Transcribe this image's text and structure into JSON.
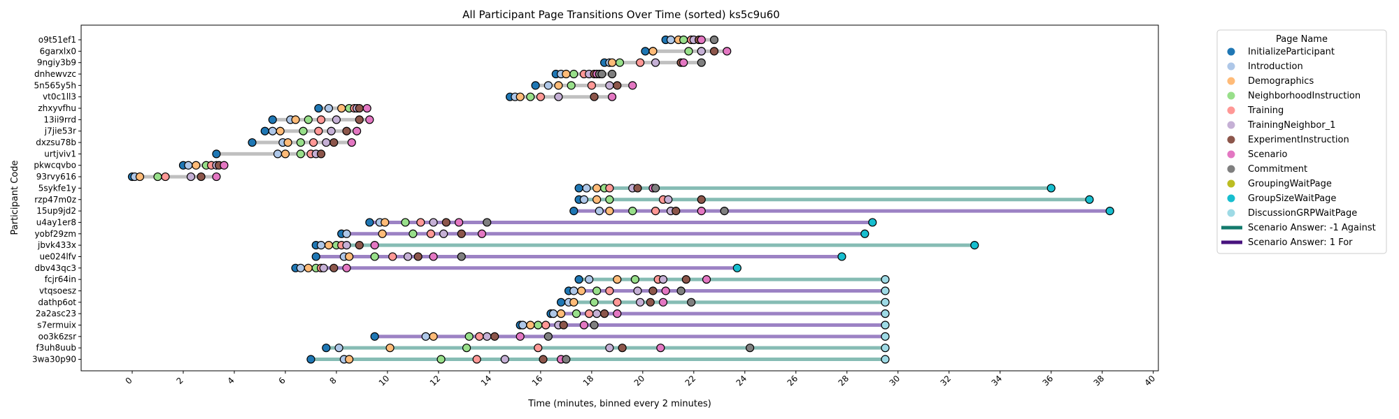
{
  "chart_data": {
    "type": "timeline",
    "title": "All Participant Page Transitions Over Time (sorted) ks5c9u60",
    "xlabel": "Time (minutes, binned every 2 minutes)",
    "ylabel": "Participant Code",
    "xlim": [
      -2,
      40.2
    ],
    "xticks": [
      0,
      2,
      4,
      6,
      8,
      10,
      12,
      14,
      16,
      18,
      20,
      22,
      24,
      26,
      28,
      30,
      32,
      34,
      36,
      38,
      40
    ],
    "grid": false,
    "legend": {
      "title": "Page Name",
      "placement": "outside-right-top",
      "page_names": [
        "InitializeParticipant",
        "Introduction",
        "Demographics",
        "NeighborhoodInstruction",
        "Training",
        "TrainingNeighbor_1",
        "ExperimentInstruction",
        "Scenario",
        "Commitment",
        "GroupingWaitPage",
        "GroupSizeWaitPage",
        "DiscussionGRPWaitPage"
      ],
      "answer_lines": [
        {
          "label": "Scenario Answer: -1 Against",
          "key": "against"
        },
        {
          "label": "Scenario Answer: 1 For",
          "key": "for"
        }
      ]
    },
    "page_colors": {
      "InitializeParticipant": "#1f77b4",
      "Introduction": "#aec7e8",
      "Demographics": "#ffbb78",
      "NeighborhoodInstruction": "#98df8a",
      "Training": "#ff9896",
      "TrainingNeighbor_1": "#c5b0d5",
      "ExperimentInstruction": "#8c564b",
      "Scenario": "#e377c2",
      "Commitment": "#7f7f7f",
      "GroupingWaitPage": "#bcbd22",
      "GroupSizeWaitPage": "#17becf",
      "DiscussionGRPWaitPage": "#9edae5"
    },
    "line_colors": {
      "none": "#c0c0c0",
      "against": "#86bcb4",
      "for": "#9c82c4",
      "against_legend": "#137a6c",
      "for_legend": "#48137e"
    },
    "page_order": [
      "InitializeParticipant",
      "Introduction",
      "Demographics",
      "NeighborhoodInstruction",
      "Training",
      "TrainingNeighbor_1",
      "ExperimentInstruction",
      "Scenario",
      "Commitment",
      "GroupSizeWaitPage",
      "DiscussionGRPWaitPage"
    ],
    "participants": [
      {
        "code": "o9t51ef1",
        "answer": "none",
        "times": [
          20.9,
          21.1,
          21.4,
          21.6,
          21.9,
          22.0,
          22.2,
          22.3,
          22.8
        ]
      },
      {
        "code": "6garxlx0",
        "answer": "none",
        "times": [
          20.1,
          20.4,
          20.4,
          21.8,
          22.3,
          22.3,
          22.8,
          23.3
        ]
      },
      {
        "code": "9ngiy3b9",
        "answer": "none",
        "times": [
          18.5,
          18.7,
          18.8,
          19.1,
          19.9,
          20.5,
          21.5,
          21.6,
          22.3
        ]
      },
      {
        "code": "dnhewvzc",
        "answer": "none",
        "times": [
          16.6,
          16.8,
          17.0,
          17.3,
          17.7,
          17.9,
          18.1,
          18.2,
          18.3,
          18.4,
          18.8
        ]
      },
      {
        "code": "5n565y5h",
        "answer": "none",
        "times": [
          15.8,
          16.3,
          16.7,
          17.2,
          18.0,
          18.7,
          19.0,
          19.6
        ]
      },
      {
        "code": "vt0c1ll3",
        "answer": "none",
        "times": [
          14.8,
          15.0,
          15.2,
          15.6,
          16.0,
          16.7,
          18.1,
          18.8
        ]
      },
      {
        "code": "zhxyvfhu",
        "answer": "none",
        "times": [
          7.3,
          7.7,
          8.2,
          8.5,
          8.7,
          8.8,
          8.9,
          9.2
        ]
      },
      {
        "code": "13ii9rrd",
        "answer": "none",
        "times": [
          5.5,
          6.2,
          6.4,
          6.9,
          7.4,
          8.0,
          8.9,
          9.3
        ]
      },
      {
        "code": "j7jie53r",
        "answer": "none",
        "times": [
          5.2,
          5.5,
          5.8,
          6.7,
          7.3,
          7.8,
          8.4,
          8.8
        ]
      },
      {
        "code": "dxzsu78b",
        "answer": "none",
        "times": [
          4.7,
          5.9,
          6.1,
          6.6,
          7.1,
          7.6,
          7.9,
          8.6
        ]
      },
      {
        "code": "urtjviv1",
        "answer": "none",
        "times": [
          3.3,
          5.7,
          6.0,
          6.6,
          7.0,
          7.2,
          7.4
        ]
      },
      {
        "code": "pkwcqvbo",
        "answer": "none",
        "times": [
          2.0,
          2.2,
          2.5,
          2.9,
          3.1,
          3.3,
          3.4,
          3.6
        ]
      },
      {
        "code": "93rvy616",
        "answer": "none",
        "times": [
          0.0,
          0.1,
          0.3,
          1.0,
          1.3,
          2.3,
          2.7,
          3.3
        ]
      },
      {
        "code": "5sykfe1y",
        "answer": "against",
        "times": [
          17.5,
          17.8,
          18.2,
          18.5,
          18.7,
          19.6,
          19.8,
          20.4,
          20.5,
          36.0
        ]
      },
      {
        "code": "rzp47m0z",
        "answer": "against",
        "times": [
          17.5,
          17.7,
          18.2,
          18.7,
          20.8,
          21.0,
          22.3,
          37.5
        ]
      },
      {
        "code": "15up9jd2",
        "answer": "for",
        "times": [
          17.3,
          18.3,
          18.7,
          19.6,
          20.5,
          21.1,
          21.3,
          22.3,
          23.2,
          38.3
        ]
      },
      {
        "code": "u4ay1er8",
        "answer": "for",
        "times": [
          9.3,
          9.7,
          9.9,
          10.7,
          11.3,
          11.8,
          12.3,
          12.8,
          13.9,
          29.0
        ]
      },
      {
        "code": "yobf29zm",
        "answer": "for",
        "times": [
          8.2,
          8.4,
          9.8,
          11.0,
          11.7,
          12.2,
          12.9,
          13.7,
          28.7
        ]
      },
      {
        "code": "jbvk433x",
        "answer": "against",
        "times": [
          7.2,
          7.4,
          7.7,
          8.0,
          8.2,
          8.4,
          8.9,
          9.5,
          33.0
        ]
      },
      {
        "code": "ue024lfv",
        "answer": "for",
        "times": [
          7.2,
          8.3,
          8.5,
          9.5,
          10.2,
          10.8,
          11.2,
          11.8,
          12.9,
          27.8
        ]
      },
      {
        "code": "dbv43qc3",
        "answer": "for",
        "times": [
          6.4,
          6.6,
          6.9,
          7.2,
          7.4,
          7.5,
          7.9,
          8.4,
          23.7
        ]
      },
      {
        "code": "fcjr64in",
        "answer": "against",
        "times": [
          17.5,
          17.9,
          19.0,
          19.7,
          20.6,
          20.8,
          21.7,
          22.5,
          29.5
        ]
      },
      {
        "code": "vtqsoesz",
        "answer": "for",
        "times": [
          17.1,
          17.3,
          17.6,
          18.2,
          18.7,
          19.8,
          20.4,
          20.9,
          21.5,
          29.5
        ]
      },
      {
        "code": "dathp6ot",
        "answer": "against",
        "times": [
          16.8,
          17.1,
          17.3,
          18.1,
          19.0,
          19.9,
          20.3,
          20.8,
          21.9,
          29.5
        ]
      },
      {
        "code": "2a2asc23",
        "answer": "for",
        "times": [
          16.4,
          16.5,
          16.8,
          17.4,
          17.9,
          18.2,
          18.5,
          19.0,
          29.5
        ]
      },
      {
        "code": "s7ermuix",
        "answer": "for",
        "times": [
          15.2,
          15.3,
          15.6,
          15.9,
          16.2,
          16.7,
          16.9,
          17.7,
          18.1,
          29.5
        ]
      },
      {
        "code": "oo3k6zsr",
        "answer": "for",
        "times": [
          9.5,
          11.5,
          11.8,
          13.2,
          13.6,
          13.9,
          14.2,
          15.2,
          16.3,
          29.5
        ]
      },
      {
        "code": "f3uh8uub",
        "answer": "against",
        "times": [
          7.6,
          8.1,
          10.1,
          13.1,
          15.9,
          18.7,
          19.2,
          20.7,
          24.2,
          29.5
        ]
      },
      {
        "code": "3wa30p90",
        "answer": "against",
        "times": [
          7.0,
          8.3,
          8.5,
          12.1,
          13.5,
          14.6,
          16.1,
          16.8,
          17.0,
          29.5
        ]
      }
    ]
  }
}
